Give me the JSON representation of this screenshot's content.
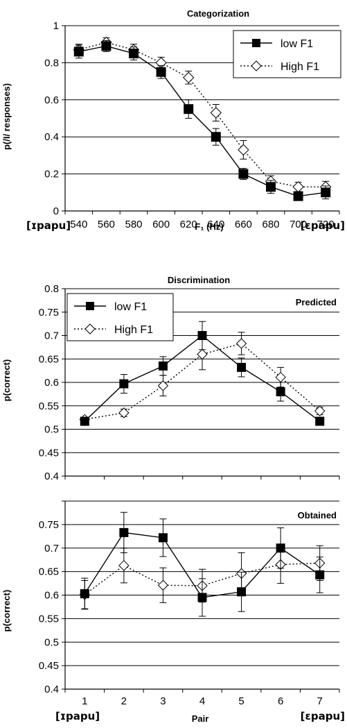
{
  "chart_data": [
    {
      "type": "line",
      "title": "Categorization",
      "xlabel": "F₁ (Hz)",
      "ylabel": "p(/I/ responses)",
      "x": [
        540,
        560,
        580,
        600,
        620,
        640,
        660,
        680,
        700,
        720
      ],
      "xticks": [
        "540",
        "560",
        "580",
        "600",
        "620",
        "640",
        "660",
        "680",
        "700",
        "720"
      ],
      "ylim": [
        0,
        1
      ],
      "yticks": [
        "0",
        "0.2",
        "0.4",
        "0.6",
        "0.8",
        "1"
      ],
      "grid": true,
      "legend": "top-right",
      "endpoint_labels": [
        "[ɪpapu]",
        "[εpapu]"
      ],
      "series": [
        {
          "name": "low F1",
          "values": [
            0.86,
            0.89,
            0.85,
            0.75,
            0.55,
            0.4,
            0.2,
            0.13,
            0.08,
            0.1
          ],
          "errors": [
            0.035,
            0.03,
            0.035,
            0.035,
            0.05,
            0.045,
            0.03,
            0.035,
            0.02,
            0.035
          ]
        },
        {
          "name": "High F1",
          "values": [
            0.87,
            0.91,
            0.87,
            0.8,
            0.72,
            0.53,
            0.33,
            0.16,
            0.13,
            0.13
          ],
          "errors": [
            0.03,
            0.025,
            0.03,
            0.03,
            0.035,
            0.045,
            0.05,
            0.03,
            0.025,
            0.03
          ]
        }
      ]
    },
    {
      "type": "line",
      "title": "Discrimination",
      "annotation": "Predicted",
      "xlabel": "",
      "ylabel": "p(correct)",
      "x": [
        1,
        2,
        3,
        4,
        5,
        6,
        7
      ],
      "ylim": [
        0.4,
        0.8
      ],
      "yticks": [
        "0.8",
        "0.75",
        "0.7",
        "0.65",
        "0.6",
        "0.55",
        "0.5",
        "0.45",
        "0.4"
      ],
      "grid": true,
      "legend": "top-left",
      "series": [
        {
          "name": "low F1",
          "values": [
            0.517,
            0.597,
            0.635,
            0.7,
            0.632,
            0.58,
            0.517
          ],
          "errors": [
            0.004,
            0.02,
            0.02,
            0.03,
            0.02,
            0.02,
            0.004
          ]
        },
        {
          "name": "High F1",
          "values": [
            0.521,
            0.535,
            0.593,
            0.66,
            0.683,
            0.611,
            0.539
          ],
          "errors": [
            0.004,
            0.008,
            0.022,
            0.033,
            0.024,
            0.021,
            0.008
          ]
        }
      ]
    },
    {
      "type": "line",
      "annotation": "Obtained",
      "xlabel": "Pair",
      "ylabel": "p(correct)",
      "x": [
        1,
        2,
        3,
        4,
        5,
        6,
        7
      ],
      "xticks": [
        "1",
        "2",
        "3",
        "4",
        "5",
        "6",
        "7"
      ],
      "ylim": [
        0.4,
        0.8
      ],
      "yticks": [
        "0.75",
        "0.7",
        "0.65",
        "0.6",
        "0.55",
        "0.5",
        "0.45",
        "0.4"
      ],
      "grid": true,
      "endpoint_labels": [
        "[ɪpapu]",
        "[εpapu]"
      ],
      "series": [
        {
          "name": "low F1",
          "values": [
            0.603,
            0.733,
            0.722,
            0.595,
            0.607,
            0.7,
            0.643
          ],
          "errors": [
            0.033,
            0.043,
            0.04,
            0.04,
            0.042,
            0.043,
            0.038
          ]
        },
        {
          "name": "High F1",
          "values": [
            0.601,
            0.663,
            0.621,
            0.62,
            0.646,
            0.665,
            0.668
          ],
          "errors": [
            0.03,
            0.037,
            0.037,
            0.035,
            0.044,
            0.04,
            0.037
          ]
        }
      ]
    }
  ]
}
